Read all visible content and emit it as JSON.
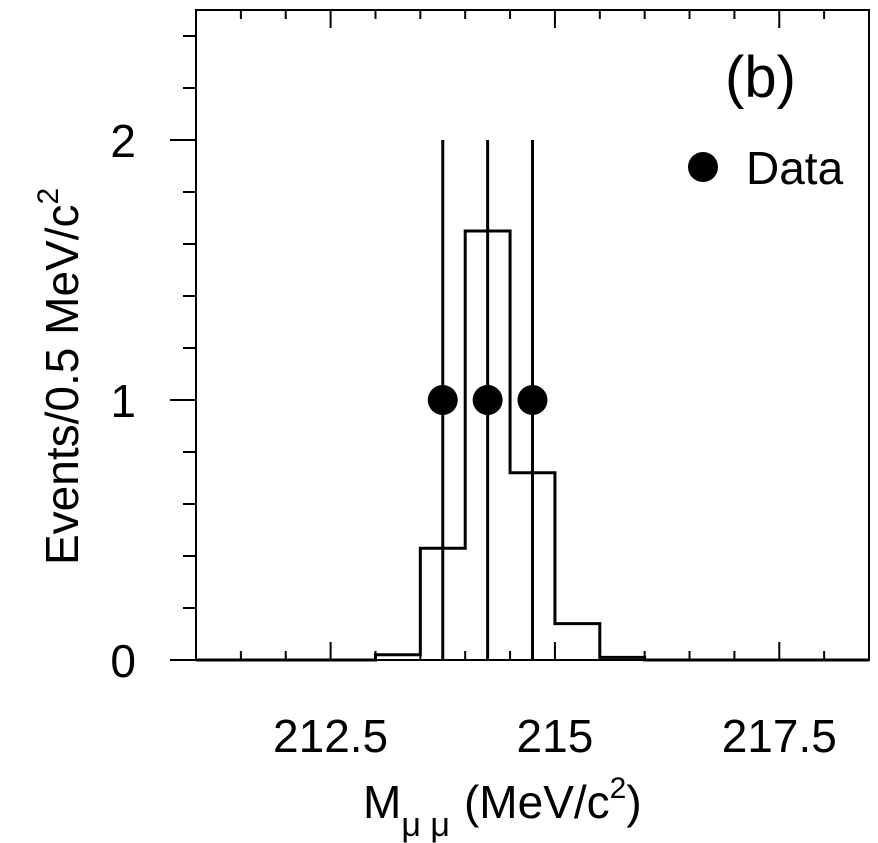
{
  "panel_label": "(b)",
  "chart_data": {
    "type": "histogram",
    "xlabel": {
      "main": "M",
      "sub": "μ μ",
      "unit": "(MeV/c",
      "unit_sup": "2",
      "unit_end": ")"
    },
    "ylabel": {
      "main": "Events/0.5 MeV/c",
      "sup": "2"
    },
    "xlim": [
      211.0,
      218.5
    ],
    "ylim": [
      0,
      2.5
    ],
    "x_ticks": [
      212.5,
      215,
      217.5
    ],
    "x_tick_labels": [
      "212.5",
      "215",
      "217.5"
    ],
    "y_ticks": [
      0,
      1,
      2
    ],
    "y_tick_labels": [
      "0",
      "1",
      "2"
    ],
    "grid": false,
    "legend": {
      "position": "top-right",
      "entries": [
        {
          "label": "Data",
          "marker": "circle"
        }
      ]
    },
    "histogram": {
      "bin_width": 0.5,
      "bins": [
        {
          "x0": 213.0,
          "x1": 213.5,
          "y": 0.02
        },
        {
          "x0": 213.5,
          "x1": 214.0,
          "y": 0.43
        },
        {
          "x0": 214.0,
          "x1": 214.5,
          "y": 1.65
        },
        {
          "x0": 214.5,
          "x1": 215.0,
          "y": 0.72
        },
        {
          "x0": 215.0,
          "x1": 215.5,
          "y": 0.14
        },
        {
          "x0": 215.5,
          "x1": 216.0,
          "y": 0.01
        }
      ]
    },
    "points": [
      {
        "x": 213.75,
        "y": 1,
        "err_low": 1,
        "err_high": 1
      },
      {
        "x": 214.25,
        "y": 1,
        "err_low": 1,
        "err_high": 1
      },
      {
        "x": 214.75,
        "y": 1,
        "err_low": 1,
        "err_high": 1
      }
    ],
    "colors": {
      "line": "#000000",
      "marker": "#000000"
    }
  }
}
